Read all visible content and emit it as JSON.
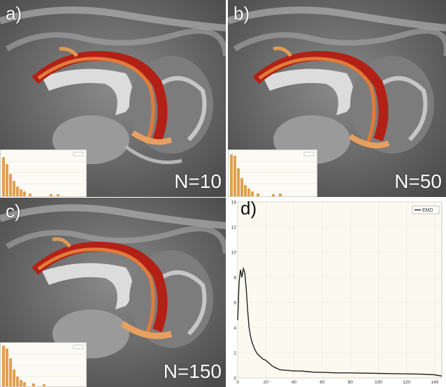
{
  "panels": [
    {
      "label": "a)",
      "n_label": "N=10"
    },
    {
      "label": "b)",
      "n_label": "N=50"
    },
    {
      "label": "c)",
      "n_label": "N=150"
    }
  ],
  "panel_d": {
    "label": "d)"
  },
  "chart_data": {
    "type": "line",
    "title": "",
    "xlabel": "",
    "ylabel": "",
    "xlim": [
      0,
      145
    ],
    "ylim": [
      0,
      14
    ],
    "x_ticks": [
      0,
      20,
      40,
      60,
      80,
      100,
      120,
      140
    ],
    "y_ticks": [
      0,
      2,
      4,
      6,
      8,
      10,
      12,
      14
    ],
    "legend": "top-right",
    "grid": true,
    "series": [
      {
        "name": "EMD",
        "color": "#222222",
        "x": [
          0,
          1,
          2,
          3,
          4,
          5,
          6,
          7,
          8,
          9,
          10,
          12,
          14,
          16,
          18,
          20,
          22,
          24,
          26,
          28,
          30,
          35,
          40,
          45,
          50,
          55,
          60,
          70,
          80,
          90,
          100,
          110,
          120,
          130,
          140,
          145
        ],
        "y": [
          4.6,
          7.6,
          8.6,
          8.0,
          8.7,
          8.4,
          7.2,
          5.5,
          4.1,
          3.4,
          2.9,
          2.3,
          1.9,
          1.7,
          1.5,
          1.4,
          1.2,
          1.0,
          0.85,
          0.75,
          0.65,
          0.6,
          0.55,
          0.55,
          0.5,
          0.45,
          0.45,
          0.4,
          0.4,
          0.38,
          0.36,
          0.34,
          0.32,
          0.3,
          0.25,
          0.15
        ]
      }
    ]
  }
}
